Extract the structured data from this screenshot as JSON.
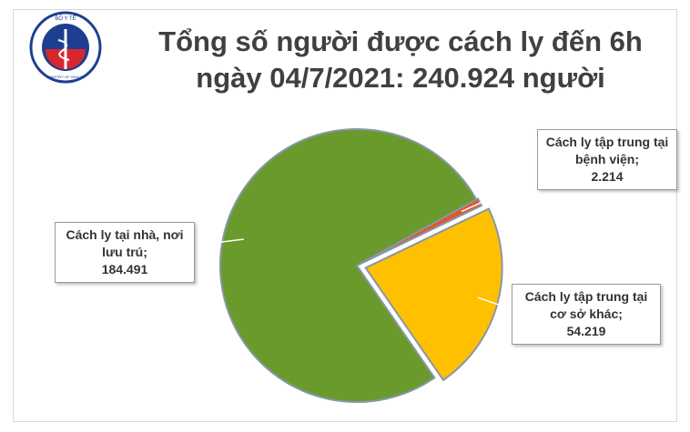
{
  "chart_data": {
    "type": "pie",
    "title": "Tổng số người được cách ly đến 6h ngày 04/7/2021: 240.924 người",
    "logo": {
      "top": "BỘ Y TẾ",
      "bottom": "MINISTRY OF HEALTH"
    },
    "categories": [
      "Cách ly tập trung tại bệnh viện;",
      "Cách ly tập trung tại cơ sở khác;",
      "Cách ly tại nhà, nơi lưu trú;"
    ],
    "values": [
      2214,
      54219,
      184491
    ],
    "value_labels": [
      "2.214",
      "54.219",
      "184.491"
    ],
    "colors": [
      "#e2572b",
      "#ffc000",
      "#6b9a2c"
    ]
  }
}
